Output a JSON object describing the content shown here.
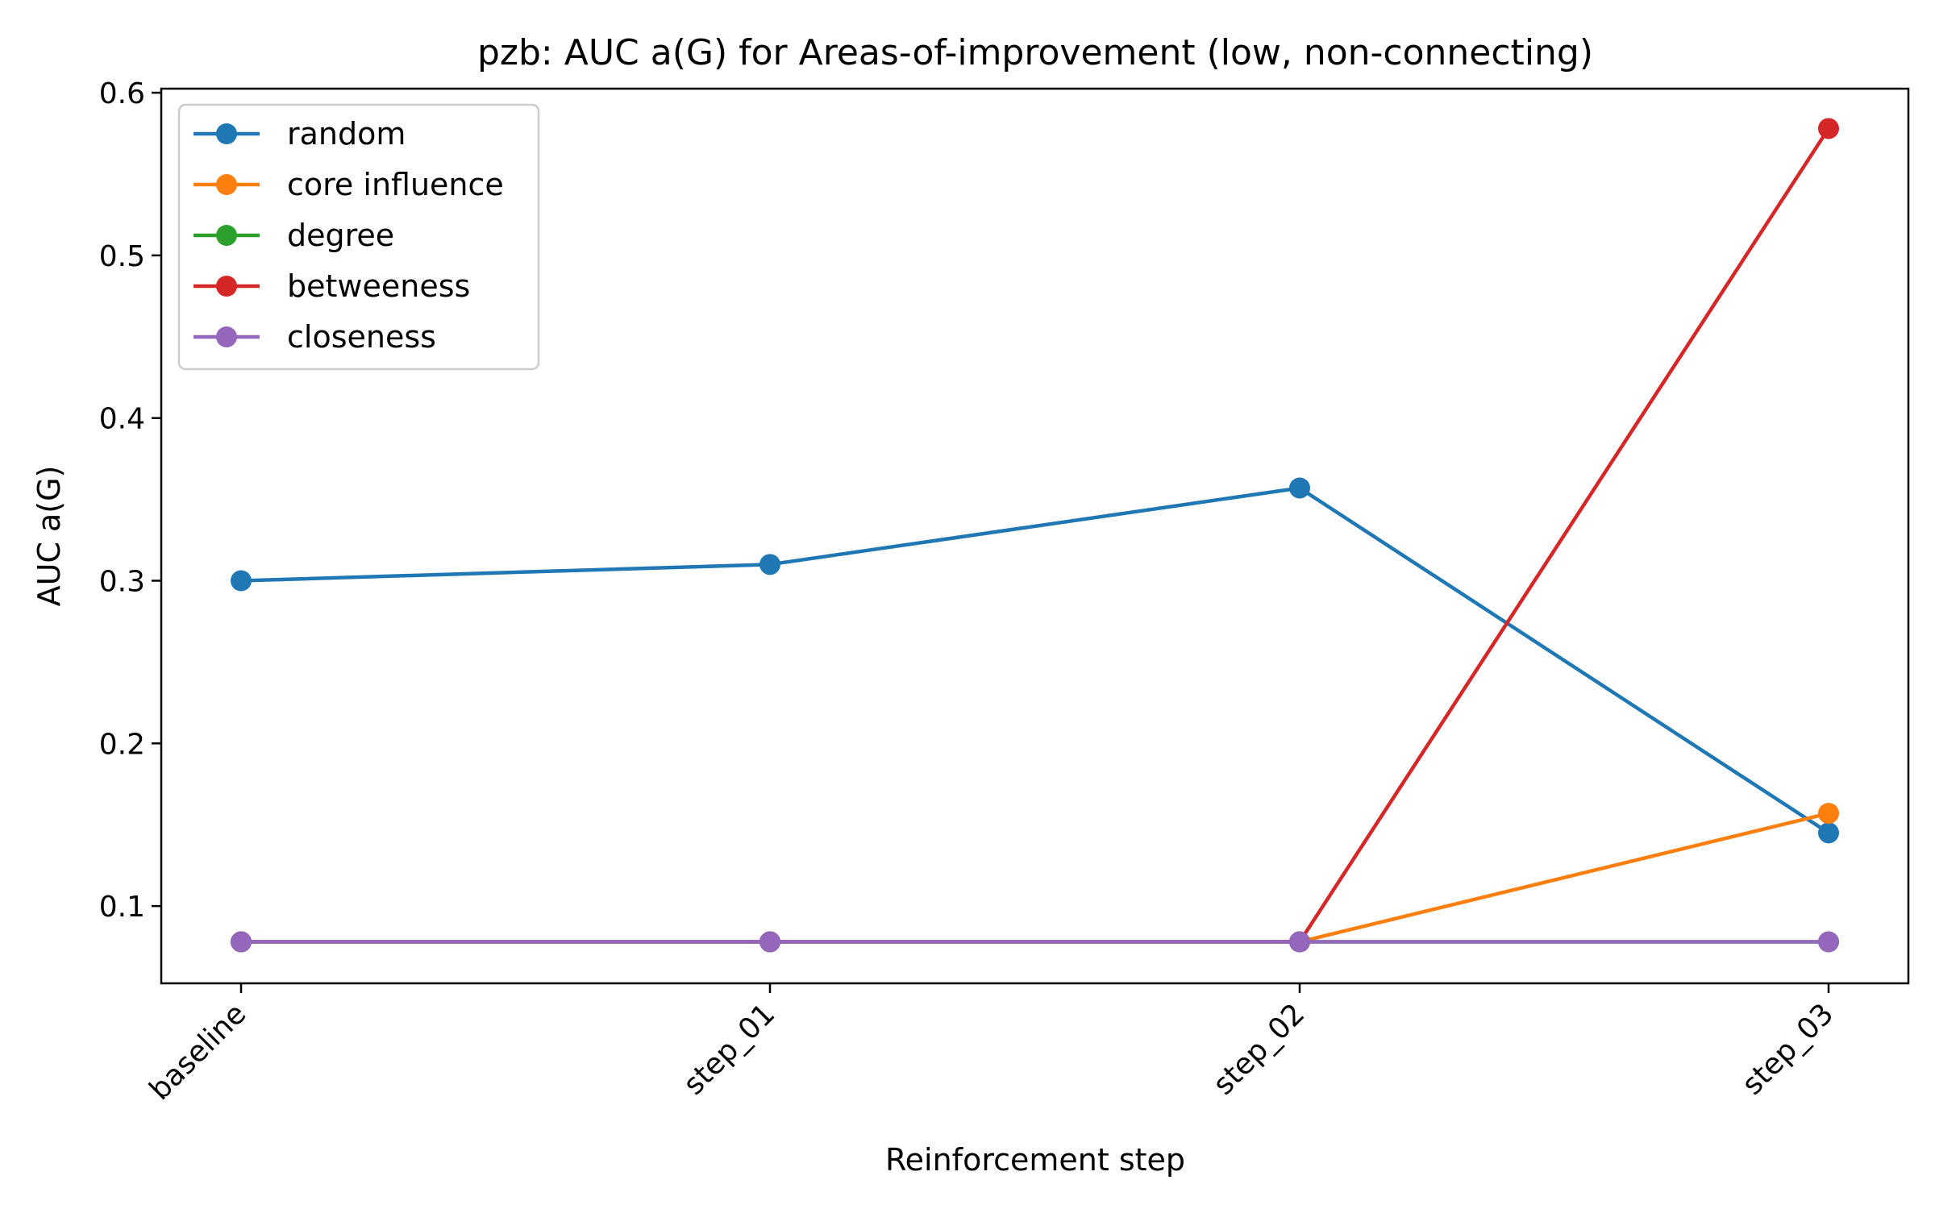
{
  "chart_data": {
    "type": "line",
    "title": "pzb: AUC a(G) for Areas-of-improvement (low, non-connecting)",
    "xlabel": "Reinforcement step",
    "ylabel": "AUC a(G)",
    "categories": [
      "baseline",
      "step_01",
      "step_02",
      "step_03"
    ],
    "ylim": [
      0.0525,
      0.6025
    ],
    "yticks": [
      0.1,
      0.2,
      0.3,
      0.4,
      0.5,
      0.6
    ],
    "ytick_labels": [
      "0.1",
      "0.2",
      "0.3",
      "0.4",
      "0.5",
      "0.6"
    ],
    "grid": false,
    "legend_position": "top-left",
    "series": [
      {
        "name": "random",
        "color": "#1f77b4",
        "values": [
          0.3,
          0.31,
          0.357,
          0.145
        ]
      },
      {
        "name": "core influence",
        "color": "#ff7f0e",
        "values": [
          0.078,
          0.078,
          0.078,
          0.157
        ]
      },
      {
        "name": "degree",
        "color": "#2ca02c",
        "values": [
          0.078,
          0.078,
          0.078,
          0.078
        ]
      },
      {
        "name": "betweeness",
        "color": "#d62728",
        "values": [
          0.078,
          0.078,
          0.078,
          0.578
        ]
      },
      {
        "name": "closeness",
        "color": "#9467bd",
        "values": [
          0.078,
          0.078,
          0.078,
          0.078
        ]
      }
    ]
  }
}
